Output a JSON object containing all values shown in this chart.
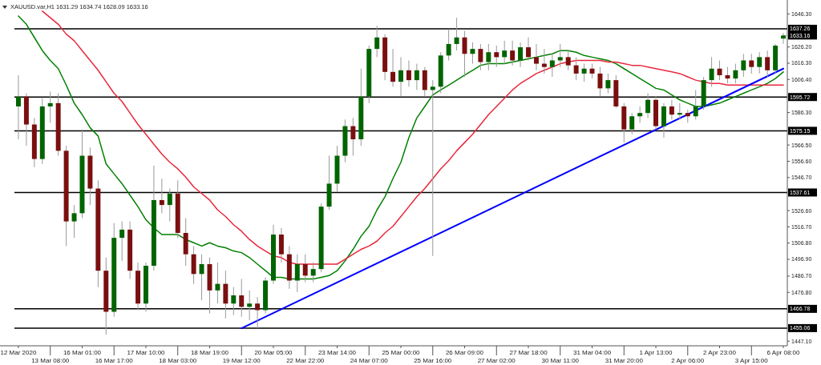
{
  "chart_data": {
    "type": "candlestick",
    "title": "XAUUSD.var,H1  1631.29 1634.74 1628.09 1633.16",
    "categories": [
      "12 Mar 2020",
      null,
      null,
      null,
      "13 Mar 08:00",
      null,
      null,
      null,
      "16 Mar 01:00",
      null,
      null,
      null,
      "16 Mar 17:00",
      null,
      null,
      null,
      "17 Mar 10:00",
      null,
      null,
      null,
      "18 Mar 03:00",
      null,
      null,
      null,
      "18 Mar 19:00",
      null,
      null,
      null,
      "19 Mar 12:00",
      null,
      null,
      null,
      "20 Mar 05:00",
      null,
      null,
      null,
      "22 Mar 22:00",
      null,
      null,
      null,
      "23 Mar 14:00",
      null,
      null,
      null,
      "24 Mar 07:00",
      null,
      null,
      null,
      "25 Mar 00:00",
      null,
      null,
      null,
      "25 Mar 16:00",
      null,
      null,
      null,
      "26 Mar 09:00",
      null,
      null,
      null,
      "27 Mar 02:00",
      null,
      null,
      null,
      "27 Mar 18:00",
      null,
      null,
      null,
      "30 Mar 11:00",
      null,
      null,
      null,
      "31 Mar 04:00",
      null,
      null,
      null,
      "31 Mar 20:00",
      null,
      null,
      null,
      "1 Apr 13:00",
      null,
      null,
      null,
      "2 Apr 06:00",
      null,
      null,
      null,
      "2 Apr 23:00",
      null,
      null,
      null,
      "3 Apr 15:00",
      null,
      null,
      null,
      "6 Apr 08:00"
    ],
    "ohlc": [
      [
        1590,
        1609,
        1570,
        1596
      ],
      [
        1596,
        1598,
        1566,
        1579
      ],
      [
        1579,
        1583,
        1553,
        1558
      ],
      [
        1558,
        1595,
        1555,
        1590
      ],
      [
        1590,
        1599,
        1580,
        1592
      ],
      [
        1592,
        1598,
        1560,
        1563
      ],
      [
        1563,
        1566,
        1505,
        1520
      ],
      [
        1520,
        1530,
        1510,
        1525
      ],
      [
        1525,
        1576,
        1522,
        1560
      ],
      [
        1560,
        1565,
        1530,
        1540
      ],
      [
        1540,
        1545,
        1480,
        1490
      ],
      [
        1490,
        1498,
        1451,
        1465
      ],
      [
        1465,
        1519,
        1462,
        1510
      ],
      [
        1510,
        1520,
        1496,
        1515
      ],
      [
        1515,
        1520,
        1485,
        1490
      ],
      [
        1490,
        1495,
        1466,
        1470
      ],
      [
        1470,
        1495,
        1465,
        1493
      ],
      [
        1493,
        1554,
        1490,
        1533
      ],
      [
        1533,
        1546,
        1525,
        1530
      ],
      [
        1530,
        1540,
        1520,
        1537
      ],
      [
        1537,
        1545,
        1510,
        1513
      ],
      [
        1513,
        1522,
        1493,
        1500
      ],
      [
        1500,
        1505,
        1482,
        1488
      ],
      [
        1488,
        1500,
        1472,
        1494
      ],
      [
        1494,
        1498,
        1464,
        1478
      ],
      [
        1478,
        1495,
        1470,
        1482
      ],
      [
        1482,
        1490,
        1461,
        1470
      ],
      [
        1470,
        1480,
        1463,
        1475
      ],
      [
        1475,
        1485,
        1462,
        1468
      ],
      [
        1468,
        1478,
        1460,
        1470
      ],
      [
        1470,
        1474,
        1455,
        1466
      ],
      [
        1466,
        1486,
        1464,
        1484
      ],
      [
        1484,
        1518,
        1482,
        1512
      ],
      [
        1512,
        1516,
        1495,
        1500
      ],
      [
        1500,
        1505,
        1479,
        1484
      ],
      [
        1484,
        1500,
        1477,
        1494
      ],
      [
        1494,
        1500,
        1483,
        1487
      ],
      [
        1487,
        1495,
        1483,
        1491
      ],
      [
        1491,
        1531,
        1489,
        1529
      ],
      [
        1529,
        1560,
        1527,
        1543
      ],
      [
        1543,
        1566,
        1538,
        1560
      ],
      [
        1560,
        1582,
        1556,
        1578
      ],
      [
        1578,
        1583,
        1560,
        1570
      ],
      [
        1570,
        1613,
        1566,
        1596
      ],
      [
        1596,
        1627,
        1592,
        1625
      ],
      [
        1625,
        1639,
        1620,
        1632
      ],
      [
        1632,
        1634,
        1606,
        1611
      ],
      [
        1611,
        1625,
        1602,
        1605
      ],
      [
        1605,
        1620,
        1596,
        1612
      ],
      [
        1612,
        1618,
        1602,
        1606
      ],
      [
        1606,
        1616,
        1600,
        1612
      ],
      [
        1612,
        1614,
        1596,
        1600
      ],
      [
        1600,
        1606,
        1499,
        1602
      ],
      [
        1602,
        1623,
        1598,
        1621
      ],
      [
        1621,
        1637,
        1618,
        1628
      ],
      [
        1628,
        1644,
        1624,
        1632
      ],
      [
        1632,
        1636,
        1608,
        1622
      ],
      [
        1622,
        1629,
        1616,
        1625
      ],
      [
        1625,
        1628,
        1612,
        1617
      ],
      [
        1617,
        1628,
        1612,
        1623
      ],
      [
        1623,
        1627,
        1614,
        1620
      ],
      [
        1620,
        1630,
        1616,
        1624
      ],
      [
        1624,
        1630,
        1615,
        1618
      ],
      [
        1618,
        1629,
        1614,
        1626
      ],
      [
        1626,
        1632,
        1618,
        1620
      ],
      [
        1620,
        1628,
        1612,
        1616
      ],
      [
        1616,
        1625,
        1610,
        1614
      ],
      [
        1614,
        1622,
        1608,
        1618
      ],
      [
        1618,
        1628,
        1614,
        1620
      ],
      [
        1620,
        1624,
        1612,
        1615
      ],
      [
        1615,
        1620,
        1606,
        1610
      ],
      [
        1610,
        1616,
        1605,
        1613
      ],
      [
        1613,
        1616,
        1607,
        1610
      ],
      [
        1610,
        1614,
        1596,
        1601
      ],
      [
        1601,
        1610,
        1598,
        1606
      ],
      [
        1606,
        1609,
        1589,
        1590
      ],
      [
        1590,
        1592,
        1568,
        1576
      ],
      [
        1576,
        1586,
        1573,
        1584
      ],
      [
        1584,
        1590,
        1580,
        1586
      ],
      [
        1586,
        1598,
        1583,
        1594
      ],
      [
        1594,
        1596,
        1576,
        1578
      ],
      [
        1578,
        1592,
        1571,
        1590
      ],
      [
        1590,
        1594,
        1582,
        1585
      ],
      [
        1585,
        1592,
        1582,
        1586
      ],
      [
        1586,
        1588,
        1580,
        1584
      ],
      [
        1584,
        1600,
        1582,
        1590
      ],
      [
        1590,
        1608,
        1588,
        1606
      ],
      [
        1606,
        1620,
        1602,
        1613
      ],
      [
        1613,
        1618,
        1606,
        1609
      ],
      [
        1609,
        1614,
        1604,
        1607
      ],
      [
        1607,
        1616,
        1604,
        1612
      ],
      [
        1612,
        1622,
        1608,
        1618
      ],
      [
        1618,
        1622,
        1610,
        1614
      ],
      [
        1614,
        1623,
        1610,
        1620
      ],
      [
        1620,
        1624,
        1608,
        1612
      ],
      [
        1612,
        1628,
        1610,
        1627
      ],
      [
        1631.29,
        1634.74,
        1628.09,
        1633.16
      ]
    ],
    "series": [
      {
        "type": "line",
        "color": "#008000",
        "values": [
          1645,
          1640,
          1632,
          1624,
          1618,
          1613,
          1603,
          1592,
          1585,
          1577,
          1572,
          1555,
          1549,
          1543,
          1536,
          1529,
          1521,
          1516,
          1512,
          1512,
          1512,
          1509,
          1507,
          1505,
          1507,
          1505,
          1504,
          1502,
          1501,
          1498,
          1494,
          1490,
          1486,
          1486,
          1485,
          1485,
          1485,
          1485,
          1486,
          1487,
          1490,
          1496,
          1503,
          1511,
          1517,
          1527,
          1535,
          1546,
          1556,
          1571,
          1583,
          1590,
          1597,
          1600,
          1603,
          1606,
          1609,
          1612,
          1615,
          1616,
          1616,
          1616,
          1617,
          1618,
          1619,
          1620,
          1621,
          1622,
          1624,
          1624,
          1623,
          1621,
          1620,
          1619,
          1618,
          1616,
          1613,
          1610,
          1607,
          1604,
          1601,
          1600,
          1597,
          1594,
          1592,
          1590,
          1590,
          1591,
          1592,
          1594,
          1596,
          1598,
          1600,
          1602,
          1604,
          1607,
          1611
        ]
      },
      {
        "type": "line",
        "color": "#e8283c",
        "values": [
          null,
          null,
          null,
          1648,
          1644,
          1640,
          1634,
          1630,
          1624,
          1618,
          1612,
          1605,
          1598,
          1593,
          1586,
          1579,
          1573,
          1567,
          1561,
          1556,
          1552,
          1547,
          1541,
          1537,
          1533,
          1527,
          1523,
          1518,
          1514,
          1509,
          1505,
          1502,
          1499,
          1498,
          1495,
          1494,
          1494,
          1494,
          1494,
          1494,
          1494,
          1497,
          1500,
          1503,
          1505,
          1508,
          1513,
          1517,
          1523,
          1529,
          1535,
          1540,
          1546,
          1552,
          1557,
          1563,
          1568,
          1573,
          1579,
          1585,
          1590,
          1595,
          1600,
          1604,
          1607,
          1610,
          1612,
          1614,
          1616,
          1617,
          1618,
          1618,
          1618,
          1618,
          1617,
          1617,
          1616,
          1615,
          1615,
          1614,
          1613,
          1612,
          1611,
          1610,
          1608,
          1606,
          1605,
          1604,
          1604,
          1603,
          1603,
          1603,
          1603,
          1603,
          1603,
          1603,
          1603
        ]
      },
      {
        "type": "line",
        "color": "#0000ff",
        "x": [
          "19 Mar 12:00",
          "6 Apr 08:00"
        ],
        "values": [
          1455,
          1613
        ]
      }
    ],
    "ref_lines": [
      {
        "axis": "y",
        "value": 1637.26,
        "label": "1637.26",
        "color": "#000000"
      },
      {
        "axis": "y",
        "value": 1595.72,
        "label": "1595.72",
        "color": "#000000"
      },
      {
        "axis": "y",
        "value": 1575.15,
        "label": "1575.15",
        "color": "#000000"
      },
      {
        "axis": "y",
        "value": 1537.61,
        "label": "1537.61",
        "color": "#000000"
      },
      {
        "axis": "y",
        "value": 1466.78,
        "label": "1466.78",
        "color": "#000000"
      },
      {
        "axis": "y",
        "value": 1455.06,
        "label": "1455.06",
        "color": "#000000"
      }
    ],
    "annotations": [
      {
        "text": "1633.16",
        "x": "6 Apr 08:00",
        "y": 1633.16
      }
    ],
    "ylim": [
      1444.3,
      1653.8
    ],
    "yticks": [
      {
        "value": 1646.3,
        "label": "1646.30"
      },
      {
        "value": 1626.2,
        "label": "1626.20"
      },
      {
        "value": 1616.3,
        "label": "1616.30"
      },
      {
        "value": 1606.4,
        "label": "1606.40"
      },
      {
        "value": 1586.3,
        "label": "1586.30"
      },
      {
        "value": 1566.5,
        "label": "1566.50"
      },
      {
        "value": 1556.6,
        "label": "1556.60"
      },
      {
        "value": 1546.7,
        "label": "1546.70"
      },
      {
        "value": 1526.6,
        "label": "1526.60"
      },
      {
        "value": 1516.7,
        "label": "1516.70"
      },
      {
        "value": 1506.8,
        "label": "1506.80"
      },
      {
        "value": 1496.9,
        "label": "1496.90"
      },
      {
        "value": 1486.7,
        "label": "1486.70"
      },
      {
        "value": 1476.8,
        "label": "1476.80"
      },
      {
        "value": 1447.1,
        "label": "1447.10"
      }
    ]
  }
}
